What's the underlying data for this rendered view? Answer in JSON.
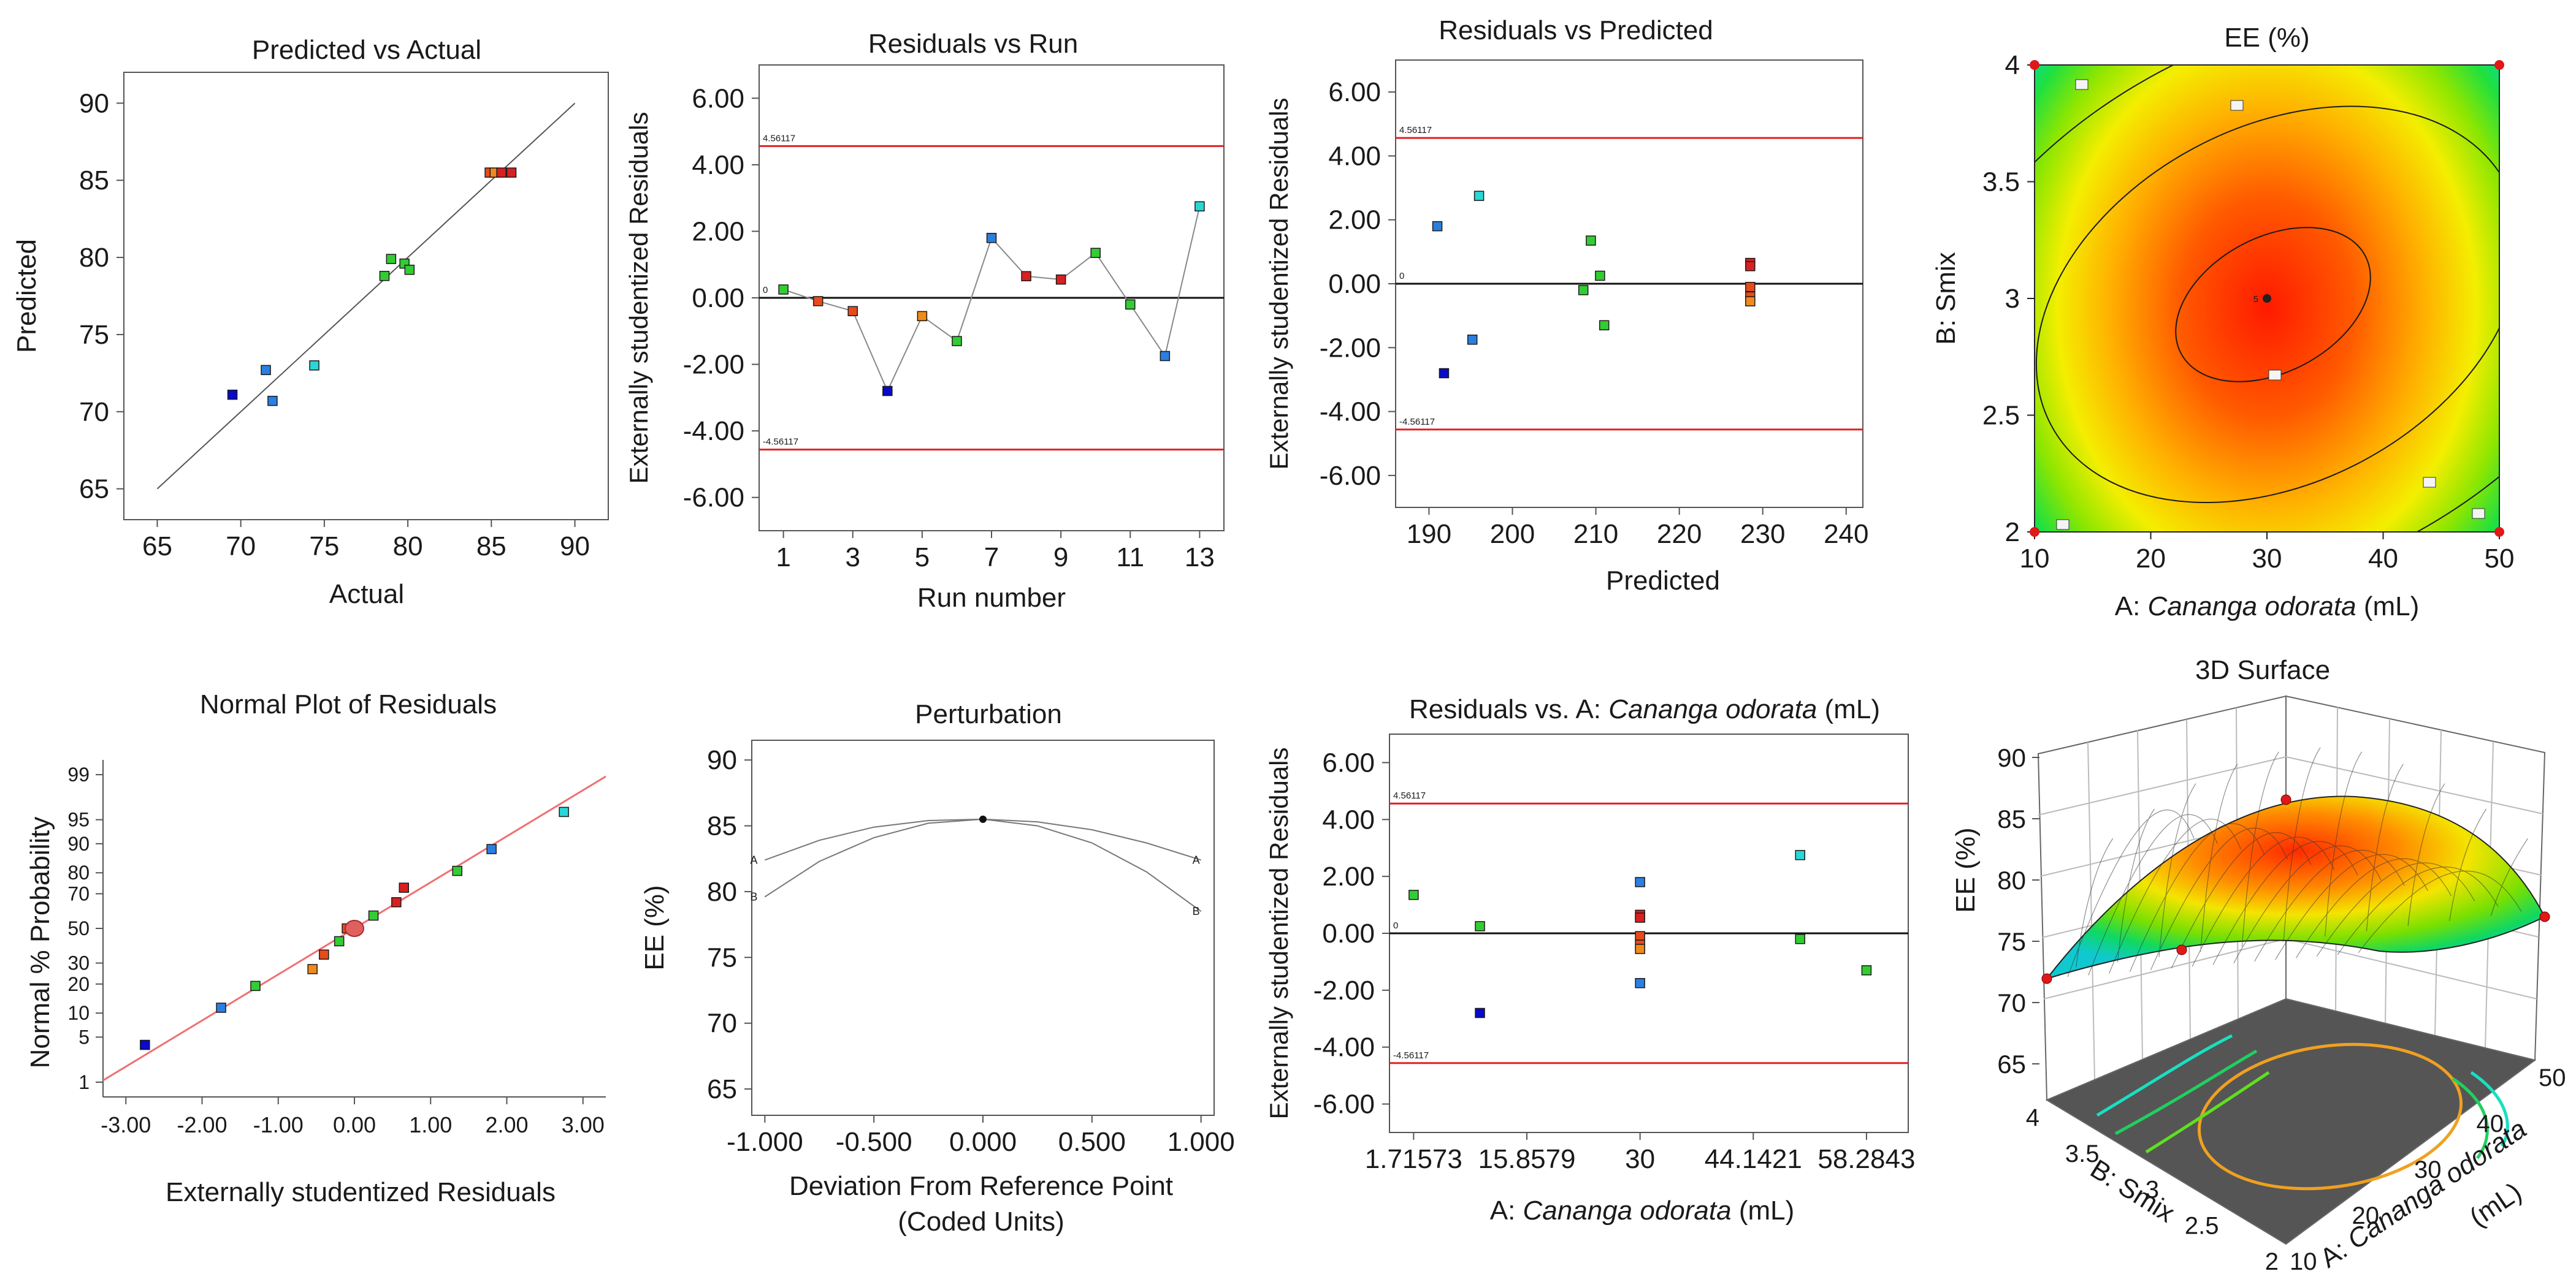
{
  "chart_data": [
    {
      "id": "pva",
      "type": "scatter",
      "title": "Predicted vs Actual",
      "xlabel": "Actual",
      "ylabel": "Predicted",
      "xlim": [
        63,
        92
      ],
      "ylim": [
        63,
        92
      ],
      "xticks": [
        65,
        70,
        75,
        80,
        85,
        90
      ],
      "yticks": [
        65,
        70,
        75,
        80,
        85,
        90
      ],
      "xtick_labels": [
        "65",
        "70",
        "75",
        "80",
        "85",
        "90"
      ],
      "ytick_labels": [
        "65",
        "70",
        "75",
        "80",
        "85",
        "90"
      ],
      "ref_line": [
        [
          65,
          65
        ],
        [
          90,
          90
        ]
      ],
      "points": [
        {
          "x": 69.5,
          "y": 71.1,
          "color": "#0a0ac8"
        },
        {
          "x": 71.5,
          "y": 72.7,
          "color": "#2a7fe0"
        },
        {
          "x": 71.9,
          "y": 70.7,
          "color": "#2a7fe0"
        },
        {
          "x": 74.4,
          "y": 73.0,
          "color": "#2ad6d6"
        },
        {
          "x": 78.6,
          "y": 78.8,
          "color": "#33cc33"
        },
        {
          "x": 79.0,
          "y": 79.9,
          "color": "#33cc33"
        },
        {
          "x": 79.8,
          "y": 79.6,
          "color": "#33cc33"
        },
        {
          "x": 80.1,
          "y": 79.2,
          "color": "#33cc33"
        },
        {
          "x": 84.9,
          "y": 85.5,
          "color": "#e84a1a"
        },
        {
          "x": 85.2,
          "y": 85.5,
          "color": "#f08a1a"
        },
        {
          "x": 85.6,
          "y": 85.5,
          "color": "#d82020"
        },
        {
          "x": 86.2,
          "y": 85.5,
          "color": "#d82020"
        }
      ]
    },
    {
      "id": "rvr",
      "type": "line",
      "title": "Residuals vs Run",
      "xlabel": "Run number",
      "ylabel": "Externally  studentized  Residuals",
      "xlim": [
        0.3,
        13.7
      ],
      "ylim": [
        -7,
        7
      ],
      "xticks": [
        1,
        3,
        5,
        7,
        9,
        11,
        13
      ],
      "yticks": [
        -6,
        -4,
        -2,
        0,
        2,
        4,
        6
      ],
      "xtick_labels": [
        "1",
        "3",
        "5",
        "7",
        "9",
        "11",
        "13"
      ],
      "ytick_labels": [
        "-6.00",
        "-4.00",
        "-2.00",
        "0.00",
        "2.00",
        "4.00",
        "6.00"
      ],
      "limits": [
        4.56117,
        -4.56117
      ],
      "limit_labels": [
        "4.56117",
        "-4.56117"
      ],
      "zero_label": "0",
      "points": [
        {
          "x": 1,
          "y": 0.25,
          "color": "#33cc33"
        },
        {
          "x": 2,
          "y": -0.1,
          "color": "#e84a1a"
        },
        {
          "x": 3,
          "y": -0.4,
          "color": "#e84a1a"
        },
        {
          "x": 4,
          "y": -2.8,
          "color": "#0a0ac8"
        },
        {
          "x": 5,
          "y": -0.55,
          "color": "#f08a1a"
        },
        {
          "x": 6,
          "y": -1.3,
          "color": "#33cc33"
        },
        {
          "x": 7,
          "y": 1.8,
          "color": "#2a7fe0"
        },
        {
          "x": 8,
          "y": 0.65,
          "color": "#d82020"
        },
        {
          "x": 9,
          "y": 0.55,
          "color": "#d82020"
        },
        {
          "x": 10,
          "y": 1.35,
          "color": "#33cc33"
        },
        {
          "x": 11,
          "y": -0.2,
          "color": "#33cc33"
        },
        {
          "x": 12,
          "y": -1.75,
          "color": "#2a7fe0"
        },
        {
          "x": 13,
          "y": 2.75,
          "color": "#2ad6d6"
        }
      ]
    },
    {
      "id": "rvp",
      "type": "scatter",
      "title": "Residuals vs Predicted",
      "xlabel": "Predicted",
      "ylabel": "Externally  studentized  Residuals",
      "xlim": [
        186,
        242
      ],
      "ylim": [
        -7,
        7
      ],
      "xticks": [
        190,
        200,
        210,
        220,
        230,
        240
      ],
      "yticks": [
        -6,
        -4,
        -2,
        0,
        2,
        4,
        6
      ],
      "xtick_labels": [
        "190",
        "200",
        "210",
        "220",
        "230",
        "240"
      ],
      "ytick_labels": [
        "-6.00",
        "-4.00",
        "-2.00",
        "0.00",
        "2.00",
        "4.00",
        "6.00"
      ],
      "limits": [
        4.56117,
        -4.56117
      ],
      "limit_labels": [
        "4.56117",
        "-4.56117"
      ],
      "zero_label": "0",
      "points": [
        {
          "x": 191.0,
          "y": 1.8,
          "color": "#2a7fe0"
        },
        {
          "x": 191.8,
          "y": -2.8,
          "color": "#0a0ac8"
        },
        {
          "x": 195.2,
          "y": -1.75,
          "color": "#2a7fe0"
        },
        {
          "x": 196.0,
          "y": 2.75,
          "color": "#2ad6d6"
        },
        {
          "x": 208.5,
          "y": -0.2,
          "color": "#33cc33"
        },
        {
          "x": 209.4,
          "y": 1.35,
          "color": "#33cc33"
        },
        {
          "x": 210.5,
          "y": 0.25,
          "color": "#33cc33"
        },
        {
          "x": 211.0,
          "y": -1.3,
          "color": "#33cc33"
        },
        {
          "x": 228.5,
          "y": 0.65,
          "color": "#d82020"
        },
        {
          "x": 228.5,
          "y": 0.55,
          "color": "#d82020"
        },
        {
          "x": 228.5,
          "y": -0.1,
          "color": "#e84a1a"
        },
        {
          "x": 228.5,
          "y": -0.4,
          "color": "#e84a1a"
        },
        {
          "x": 228.5,
          "y": -0.55,
          "color": "#f08a1a"
        }
      ]
    },
    {
      "id": "contour",
      "type": "heatmap",
      "title": "EE (%)",
      "xlabel_prefix": "A: ",
      "xlabel_italic": "Cananga odorata",
      "xlabel_suffix": " (mL)",
      "ylabel": "B: Smix",
      "xlim": [
        10,
        50
      ],
      "ylim": [
        2,
        4
      ],
      "xticks": [
        10,
        20,
        30,
        40,
        50
      ],
      "yticks": [
        2,
        2.5,
        3,
        3.5,
        4
      ],
      "xtick_labels": [
        "10",
        "20",
        "30",
        "40",
        "50"
      ],
      "ytick_labels": [
        "2",
        "2.5",
        "3",
        "3.5",
        "4"
      ],
      "center_point": {
        "x": 30,
        "y": 3,
        "label": "5"
      },
      "corner_points": [
        {
          "x": 10,
          "y": 2
        },
        {
          "x": 50,
          "y": 2
        },
        {
          "x": 10,
          "y": 4
        },
        {
          "x": 50,
          "y": 4
        }
      ],
      "contour_levels": [
        70,
        75,
        80,
        85
      ]
    },
    {
      "id": "npr",
      "type": "scatter",
      "title": "Normal Plot of Residuals",
      "xlabel": "Externally studentized Residuals",
      "ylabel": "Normal % Probability",
      "xlim": [
        -3.3,
        3.3
      ],
      "ylim": [
        -2.55,
        2.55
      ],
      "xticks": [
        -3,
        -2,
        -1,
        0,
        1,
        2,
        3
      ],
      "xtick_labels": [
        "-3.00",
        "-2.00",
        "-1.00",
        "0.00",
        "1.00",
        "2.00",
        "3.00"
      ],
      "yticks_prob": [
        1,
        5,
        10,
        20,
        30,
        50,
        70,
        80,
        90,
        95,
        99
      ],
      "ytick_labels": [
        "1",
        "5",
        "10",
        "20",
        "30",
        "50",
        "70",
        "80",
        "90",
        "95",
        "99"
      ],
      "ref_line": [
        [
          -3.3,
          -2.3
        ],
        [
          3.3,
          2.3
        ]
      ],
      "points": [
        {
          "x": -2.75,
          "y": 3.9,
          "color": "#0a0ac8"
        },
        {
          "x": -1.75,
          "y": 11.5,
          "color": "#2a7fe0"
        },
        {
          "x": -1.3,
          "y": 19.2,
          "color": "#33cc33"
        },
        {
          "x": -0.55,
          "y": 26.9,
          "color": "#f08a1a"
        },
        {
          "x": -0.4,
          "y": 34.6,
          "color": "#e84a1a"
        },
        {
          "x": -0.2,
          "y": 42.3,
          "color": "#33cc33"
        },
        {
          "x": -0.1,
          "y": 50.0,
          "color": "#e84a1a"
        },
        {
          "x": 0.25,
          "y": 57.7,
          "color": "#33cc33"
        },
        {
          "x": 0.55,
          "y": 65.4,
          "color": "#d82020"
        },
        {
          "x": 0.65,
          "y": 73.1,
          "color": "#d82020"
        },
        {
          "x": 1.35,
          "y": 80.8,
          "color": "#33cc33"
        },
        {
          "x": 1.8,
          "y": 88.5,
          "color": "#2a7fe0"
        },
        {
          "x": 2.75,
          "y": 96.1,
          "color": "#2ad6d6"
        }
      ],
      "marker": {
        "x": 0,
        "y": 50
      }
    },
    {
      "id": "pert",
      "type": "line",
      "title": "Perturbation",
      "xlabel": "Deviation From Reference Point",
      "xlabel2": "(Coded Units)",
      "ylabel": "EE (%)",
      "xlim": [
        -1.06,
        1.06
      ],
      "ylim": [
        63,
        91.5
      ],
      "xticks": [
        -1,
        -0.5,
        0,
        0.5,
        1
      ],
      "yticks": [
        65,
        70,
        75,
        80,
        85,
        90
      ],
      "xtick_labels": [
        "-1.000",
        "-0.500",
        "0.000",
        "0.500",
        "1.000"
      ],
      "ytick_labels": [
        "65",
        "70",
        "75",
        "80",
        "85",
        "90"
      ],
      "series": [
        {
          "name": "A",
          "x": [
            -1,
            -0.75,
            -0.5,
            -0.25,
            0,
            0.25,
            0.5,
            0.75,
            1
          ],
          "y": [
            82.4,
            83.9,
            84.9,
            85.4,
            85.5,
            85.3,
            84.7,
            83.7,
            82.4
          ]
        },
        {
          "name": "B",
          "x": [
            -1,
            -0.75,
            -0.5,
            -0.25,
            0,
            0.25,
            0.5,
            0.75,
            1
          ],
          "y": [
            79.6,
            82.3,
            84.1,
            85.2,
            85.5,
            85.0,
            83.7,
            81.5,
            78.5
          ]
        }
      ],
      "reference_point": {
        "x": 0,
        "y": 85.5
      }
    },
    {
      "id": "rva",
      "type": "scatter",
      "title_prefix": "Residuals vs. A: ",
      "title_italic": "Cananga odorata",
      "title_suffix": " (mL)",
      "xlabel_prefix": "A: ",
      "xlabel_italic": "Cananga odorata",
      "xlabel_suffix": " (mL)",
      "ylabel": "Externally  studentized  Residuals",
      "xlim": [
        -1.3,
        63.5
      ],
      "ylim": [
        -7,
        7
      ],
      "xticks": [
        1.71573,
        15.8579,
        30,
        44.1421,
        58.2843
      ],
      "yticks": [
        -6,
        -4,
        -2,
        0,
        2,
        4,
        6
      ],
      "xtick_labels": [
        "1.71573",
        "15.8579",
        "30",
        "44.1421",
        "58.2843"
      ],
      "ytick_labels": [
        "-6.00",
        "-4.00",
        "-2.00",
        "0.00",
        "2.00",
        "4.00",
        "6.00"
      ],
      "limits": [
        4.56117,
        -4.56117
      ],
      "limit_labels": [
        "4.56117",
        "-4.56117"
      ],
      "zero_label": "0",
      "points": [
        {
          "x": 1.71573,
          "y": 1.35,
          "color": "#33cc33"
        },
        {
          "x": 10,
          "y": 0.25,
          "color": "#33cc33"
        },
        {
          "x": 10,
          "y": -2.8,
          "color": "#0a0ac8"
        },
        {
          "x": 30,
          "y": 1.8,
          "color": "#2a7fe0"
        },
        {
          "x": 30,
          "y": 0.65,
          "color": "#d82020"
        },
        {
          "x": 30,
          "y": 0.55,
          "color": "#d82020"
        },
        {
          "x": 30,
          "y": -0.1,
          "color": "#e84a1a"
        },
        {
          "x": 30,
          "y": -0.4,
          "color": "#e84a1a"
        },
        {
          "x": 30,
          "y": -0.55,
          "color": "#f08a1a"
        },
        {
          "x": 30,
          "y": -1.75,
          "color": "#2a7fe0"
        },
        {
          "x": 50,
          "y": 2.75,
          "color": "#2ad6d6"
        },
        {
          "x": 50,
          "y": -0.2,
          "color": "#33cc33"
        },
        {
          "x": 58.2843,
          "y": -1.3,
          "color": "#33cc33"
        }
      ]
    },
    {
      "id": "surf",
      "type": "area",
      "title": "3D Surface",
      "zlabel": "EE (%)",
      "zticks": [
        65,
        70,
        75,
        80,
        85,
        90
      ],
      "ztick_labels": [
        "65",
        "70",
        "75",
        "80",
        "85",
        "90"
      ],
      "xlabel_prefix": "A: ",
      "xlabel_italic": "Cananga odorata",
      "xlabel_suffix": " (mL)",
      "ylabel": "B: Smix",
      "xticks": [
        10,
        20,
        30,
        40,
        50
      ],
      "xtick_labels": [
        "10",
        "20",
        "30",
        "40",
        "50"
      ],
      "yticks": [
        2,
        2.5,
        3,
        3.5,
        4
      ],
      "ytick_labels": [
        "2",
        "2.5",
        "3",
        "3.5",
        "4"
      ],
      "zlim": [
        65,
        90
      ]
    }
  ]
}
